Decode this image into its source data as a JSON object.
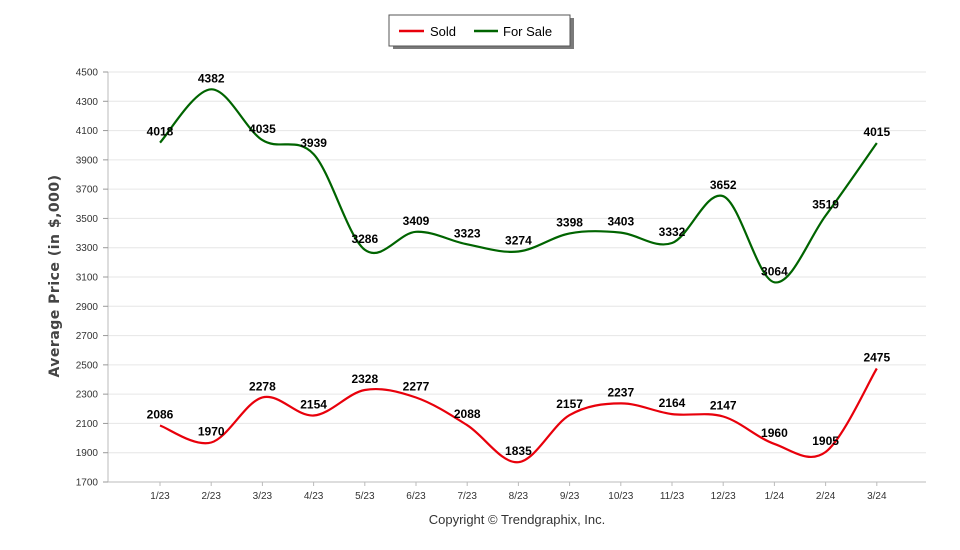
{
  "chart_data": {
    "type": "line",
    "title": "",
    "xlabel": "",
    "ylabel": "Average Price (in $,000)",
    "ylim": [
      1700,
      4500
    ],
    "yticks": [
      1700,
      1900,
      2100,
      2300,
      2500,
      2700,
      2900,
      3100,
      3300,
      3500,
      3700,
      3900,
      4100,
      4300,
      4500
    ],
    "grid": true,
    "legend_position": "top-center",
    "categories": [
      "1/23",
      "2/23",
      "3/23",
      "4/23",
      "5/23",
      "6/23",
      "7/23",
      "8/23",
      "9/23",
      "10/23",
      "11/23",
      "12/23",
      "1/24",
      "2/24",
      "3/24"
    ],
    "series": [
      {
        "name": "Sold",
        "color": "#e8000b",
        "values": [
          2086,
          1970,
          2278,
          2154,
          2328,
          2277,
          2088,
          1835,
          2157,
          2237,
          2164,
          2147,
          1960,
          1905,
          2475
        ]
      },
      {
        "name": "For Sale",
        "color": "#006400",
        "values": [
          4018,
          4382,
          4035,
          3939,
          3286,
          3409,
          3323,
          3274,
          3398,
          3403,
          3332,
          3652,
          3064,
          3519,
          4015
        ]
      }
    ]
  },
  "footer": {
    "copyright": "Copyright © Trendgraphix, Inc."
  }
}
